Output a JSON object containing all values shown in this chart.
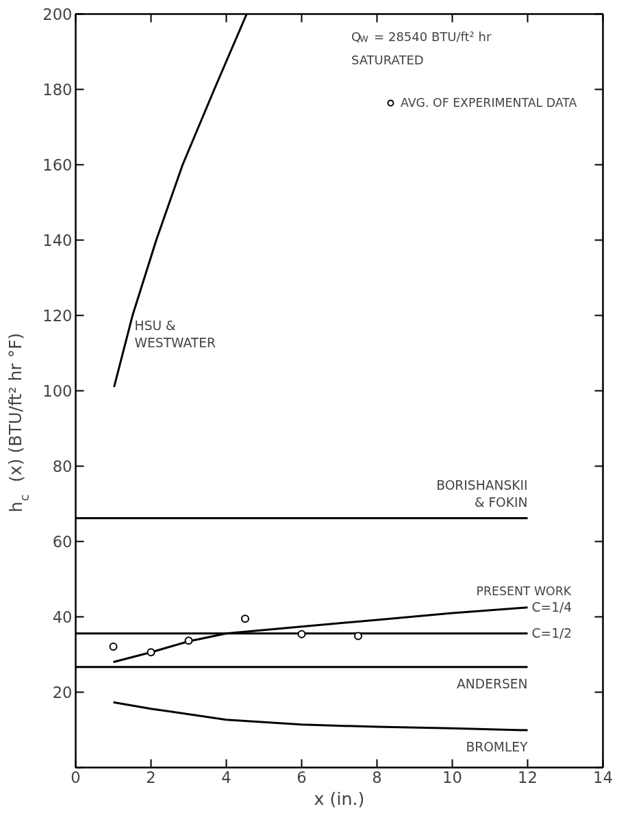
{
  "chart_data": {
    "type": "line",
    "xlabel": "x (in.)",
    "ylabel": "h$_{c}$ (x)  (BTU/ft² hr °F)",
    "xlim": [
      0,
      14
    ],
    "xticks": [
      0,
      2,
      4,
      6,
      8,
      10,
      12,
      14
    ],
    "ylim": [
      0,
      200
    ],
    "yticks": [
      {
        "value": 0,
        "label": null
      },
      20,
      40,
      60,
      80,
      100,
      120,
      140,
      160,
      180,
      200
    ],
    "grid": false,
    "legend": "top right",
    "line_style": "solid",
    "marker": "none",
    "annotations": [
      "Q$_{W}$ = 28540  BTU/ft² hr",
      "SATURATED",
      "PRESENT WORK"
    ],
    "series": [
      {
        "name": "HSU &\nWESTWATER",
        "color": "#000000",
        "x": [
          1.02,
          1.51,
          2.14,
          2.84,
          3.68,
          4.54
        ],
        "values": [
          101,
          120,
          140,
          160,
          180,
          200
        ]
      },
      {
        "name": "BORISHANSKII\n& FOKIN",
        "color": "#000000",
        "x": [
          0,
          12
        ],
        "values": [
          66.2,
          66.2
        ]
      },
      {
        "name": "C=1/4",
        "color": "#000000",
        "x": [
          1,
          2,
          3,
          4,
          6,
          8,
          10,
          12
        ],
        "values": [
          28.0,
          30.6,
          33.5,
          35.6,
          37.4,
          39.2,
          41.0,
          42.5
        ]
      },
      {
        "name": "C=1/2",
        "color": "#000000",
        "x": [
          0,
          12
        ],
        "values": [
          35.6,
          35.6
        ]
      },
      {
        "name": "ANDERSEN",
        "color": "#000000",
        "x": [
          0,
          12
        ],
        "values": [
          26.7,
          26.7
        ]
      },
      {
        "name": "BROMLEY",
        "color": "#000000",
        "x": [
          1,
          2,
          4,
          6,
          8,
          10,
          12
        ],
        "values": [
          17.3,
          15.6,
          12.7,
          11.4,
          10.8,
          10.4,
          9.9
        ]
      },
      {
        "name": "AVG. OF EXPERIMENTAL DATA",
        "type": "scatter",
        "marker": "circle",
        "color": "#000000",
        "x": [
          1,
          2,
          3,
          4.5,
          6,
          7.5
        ],
        "values": [
          32.1,
          30.6,
          33.7,
          39.5,
          35.4,
          34.9
        ]
      }
    ]
  }
}
